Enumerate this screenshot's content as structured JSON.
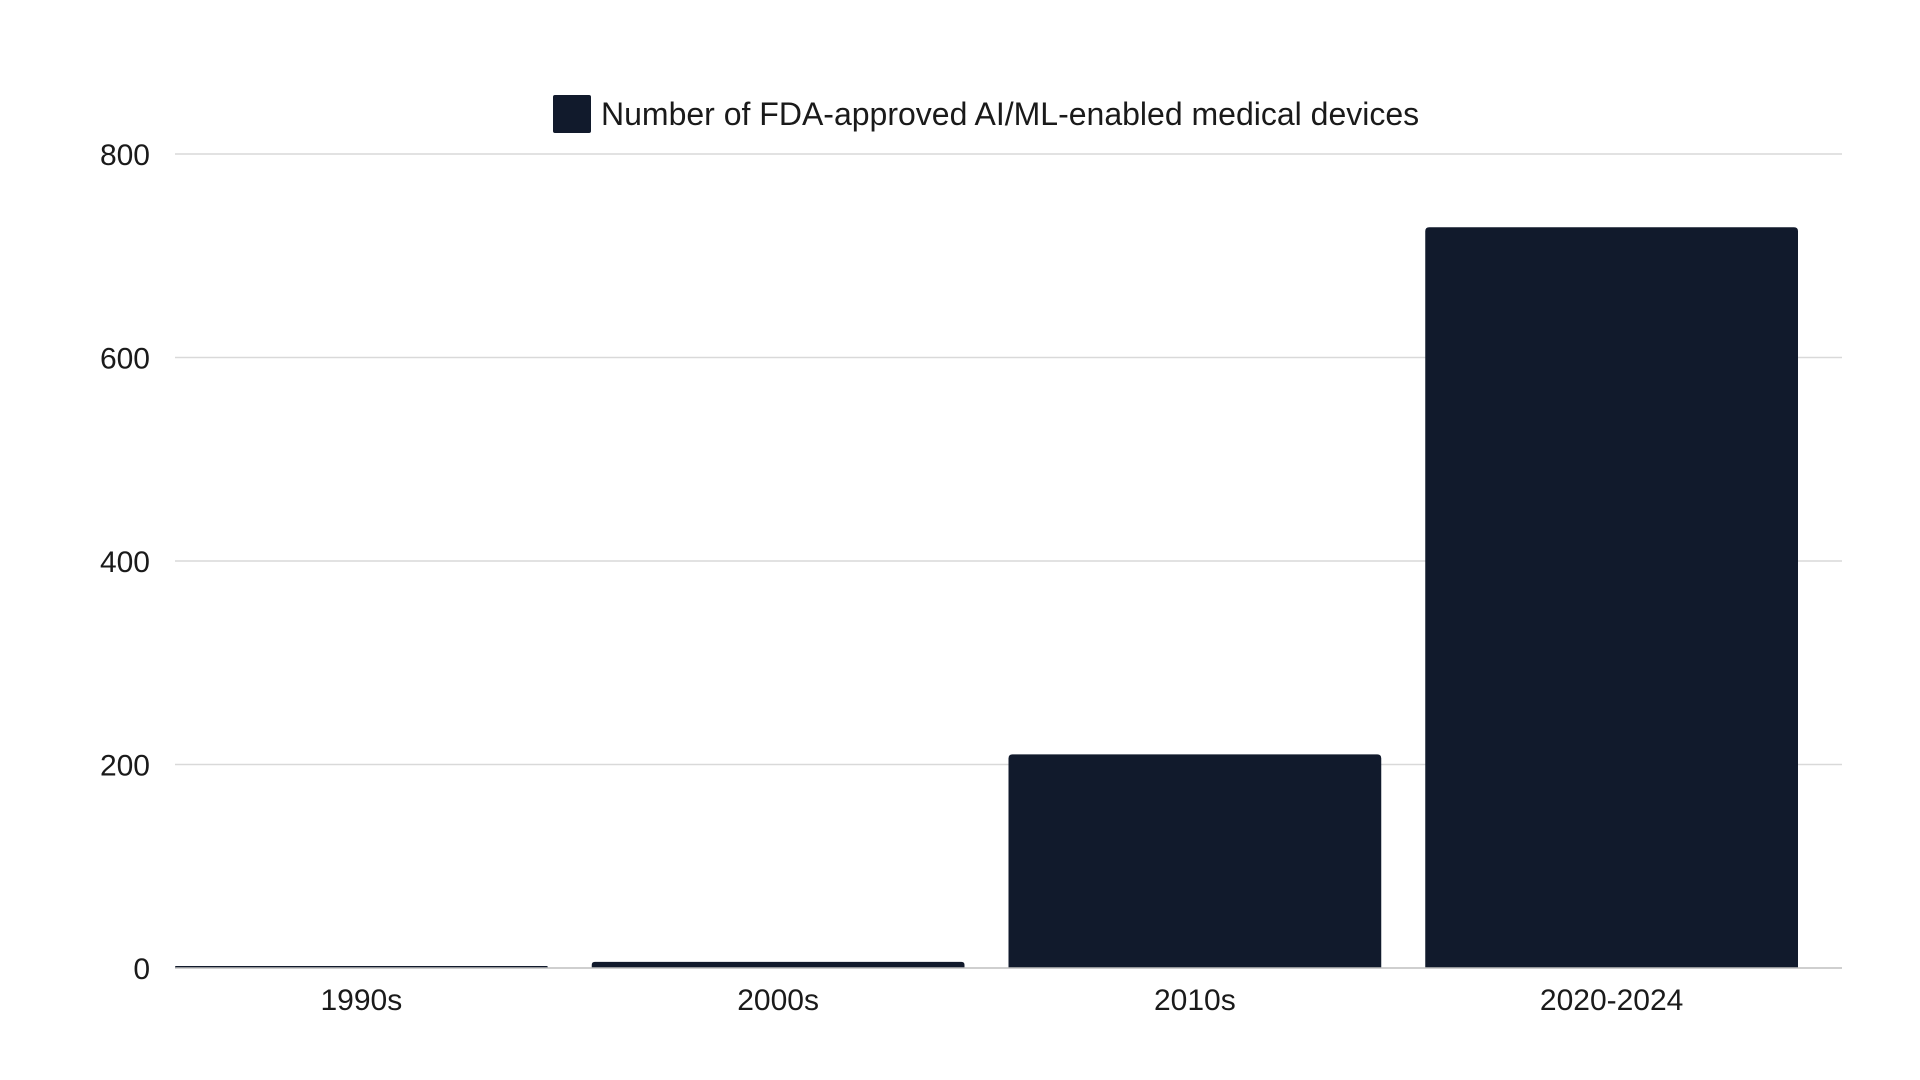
{
  "chart_data": {
    "type": "bar",
    "title": "",
    "xlabel": "",
    "ylabel": "",
    "categories": [
      "1990s",
      "2000s",
      "2010s",
      "2020-2024"
    ],
    "series": [
      {
        "name": "Number of FDA-approved AI/ML-enabled medical devices",
        "color": "#111a2c",
        "values": [
          1,
          6,
          210,
          728
        ]
      }
    ],
    "ylim": [
      0,
      800
    ],
    "yticks": [
      "0",
      "200",
      "400",
      "600",
      "800"
    ],
    "grid": true,
    "legend": "top-center"
  }
}
